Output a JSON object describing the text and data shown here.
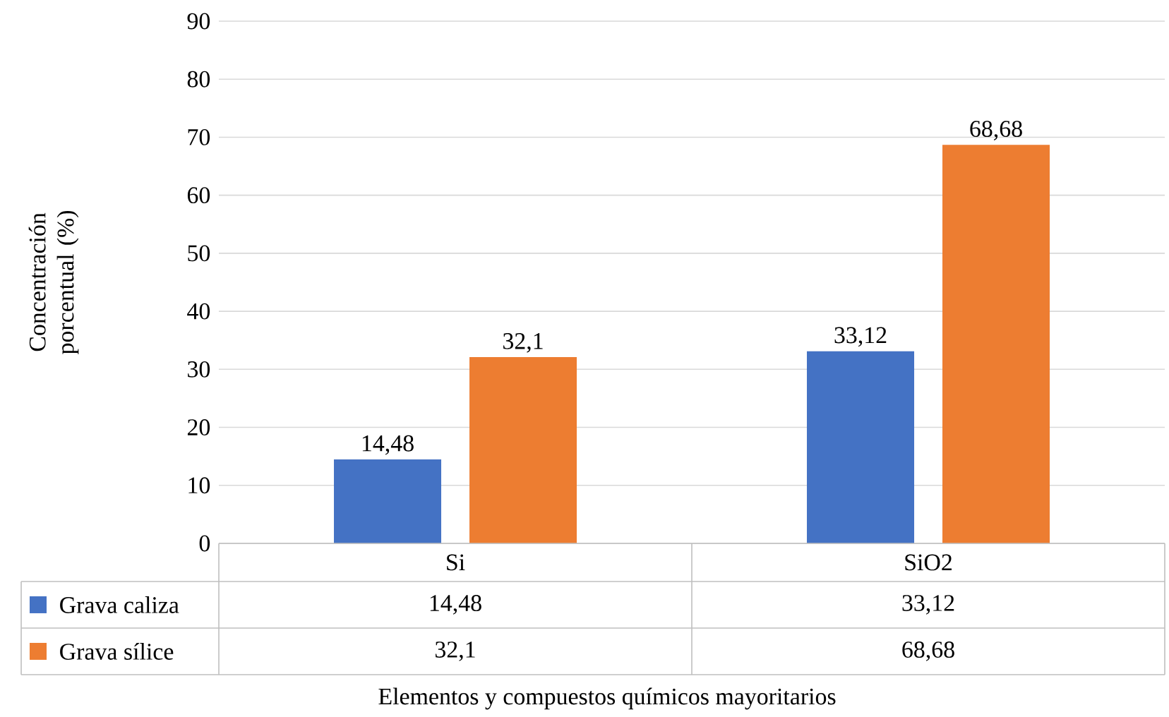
{
  "chart_data": {
    "type": "bar",
    "xlabel": "Elementos y compuestos químicos mayoritarios",
    "ylabel": "Concentración porcentual (%)",
    "categories": [
      "Si",
      "SiO2"
    ],
    "series": [
      {
        "name": "Grava caliza",
        "color": "#4472c4",
        "values": [
          14.48,
          33.12
        ],
        "value_labels": [
          "14,48",
          "33,12"
        ]
      },
      {
        "name": "Grava sílice",
        "color": "#ed7d31",
        "values": [
          32.1,
          68.68
        ],
        "value_labels": [
          "32,1",
          "68,68"
        ]
      }
    ],
    "ylim": [
      0,
      90
    ],
    "yticks": [
      0,
      10,
      20,
      30,
      40,
      50,
      60,
      70,
      80,
      90
    ],
    "grid": "y",
    "legend": "bottom"
  }
}
